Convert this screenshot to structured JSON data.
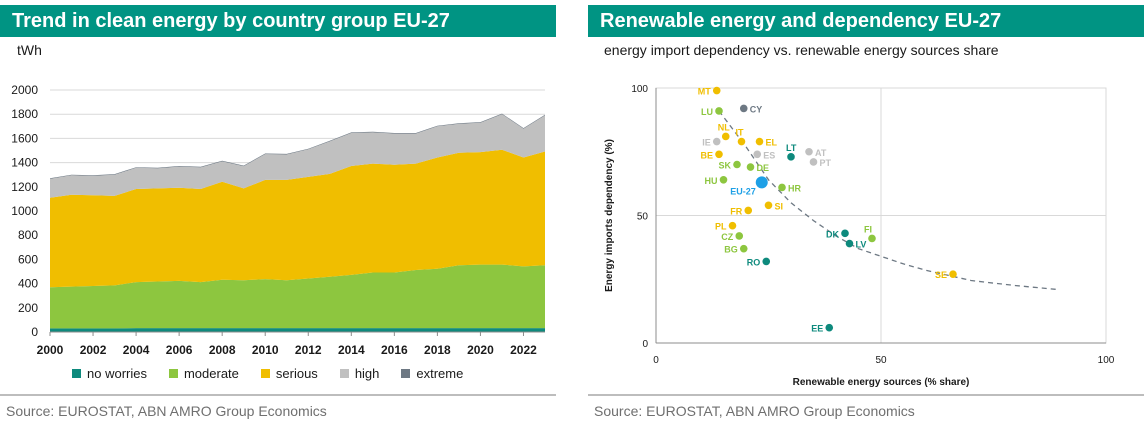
{
  "left_panel": {
    "title": "Trend in clean energy by country group EU-27",
    "unit": "tWh",
    "source": "Source: EUROSTAT, ABN AMRO Group Economics"
  },
  "right_panel": {
    "title": "Renewable energy and dependency EU-27",
    "subtitle": "energy import dependency vs. renewable energy sources share",
    "source": "Source: EUROSTAT, ABN AMRO Group Economics"
  },
  "chart_data": [
    {
      "type": "area",
      "stacked": true,
      "title": "Trend in clean energy by country group EU-27",
      "ylabel": "tWh",
      "xlabel": "",
      "ylim": [
        0,
        2000
      ],
      "yticks": [
        0,
        200,
        400,
        600,
        800,
        1000,
        1200,
        1400,
        1600,
        1800,
        2000
      ],
      "xticks": [
        2000,
        2002,
        2004,
        2006,
        2008,
        2010,
        2012,
        2014,
        2016,
        2018,
        2020,
        2022
      ],
      "grid": true,
      "legend_position": "bottom",
      "x": [
        2000,
        2001,
        2002,
        2003,
        2004,
        2005,
        2006,
        2007,
        2008,
        2009,
        2010,
        2011,
        2012,
        2013,
        2014,
        2015,
        2016,
        2017,
        2018,
        2019,
        2020,
        2021,
        2022,
        2023
      ],
      "series": [
        {
          "name": "no worries",
          "color": "#0e8a7d",
          "values": [
            30,
            30,
            30,
            30,
            32,
            32,
            32,
            32,
            32,
            32,
            32,
            32,
            32,
            32,
            32,
            32,
            32,
            32,
            32,
            32,
            32,
            32,
            32,
            32
          ]
        },
        {
          "name": "moderate",
          "color": "#8dc63f",
          "values": [
            340,
            345,
            350,
            355,
            380,
            385,
            390,
            380,
            400,
            395,
            405,
            395,
            410,
            425,
            440,
            460,
            460,
            480,
            490,
            520,
            525,
            525,
            510,
            520
          ]
        },
        {
          "name": "serious",
          "color": "#f0be00",
          "values": [
            740,
            760,
            750,
            740,
            770,
            770,
            770,
            770,
            810,
            760,
            820,
            830,
            840,
            850,
            900,
            900,
            890,
            880,
            920,
            930,
            930,
            950,
            900,
            940
          ]
        },
        {
          "name": "high",
          "color": "#c0c0c0",
          "values": [
            155,
            160,
            160,
            175,
            175,
            165,
            175,
            178,
            168,
            183,
            213,
            210,
            228,
            268,
            273,
            258,
            258,
            248,
            258,
            238,
            243,
            293,
            238,
            298
          ]
        },
        {
          "name": "extreme",
          "color": "#6d7883",
          "values": [
            5,
            5,
            5,
            5,
            5,
            5,
            5,
            5,
            5,
            5,
            5,
            5,
            5,
            5,
            5,
            5,
            5,
            5,
            5,
            5,
            5,
            5,
            5,
            5
          ]
        }
      ]
    },
    {
      "type": "scatter",
      "title": "Renewable energy and dependency EU-27",
      "subtitle": "energy import dependency vs. renewable energy sources share",
      "xlabel": "Renewable energy sources (% share)",
      "ylabel": "Energy imports dependency (%)",
      "xlim": [
        0,
        100
      ],
      "ylim": [
        0,
        100
      ],
      "xticks": [
        0,
        50,
        100
      ],
      "yticks": [
        0,
        50,
        100
      ],
      "grid": true,
      "color_groups": {
        "no worries": "#0e8a7d",
        "moderate": "#8dc63f",
        "serious": "#f0be00",
        "high": "#c0c0c0",
        "extreme": "#6d7883",
        "EU-27": "#1ea0e6"
      },
      "trendline": [
        [
          14,
          91
        ],
        [
          20,
          77
        ],
        [
          25,
          64
        ],
        [
          30,
          55
        ],
        [
          35,
          48
        ],
        [
          40,
          42
        ],
        [
          45,
          37
        ],
        [
          50,
          34
        ],
        [
          55,
          31
        ],
        [
          60,
          28.5
        ],
        [
          65,
          26.5
        ],
        [
          70,
          24.5
        ],
        [
          75,
          23.5
        ],
        [
          80,
          22.5
        ],
        [
          85,
          21.7
        ],
        [
          89,
          21
        ]
      ],
      "points": [
        {
          "label": "MT",
          "x": 13.5,
          "y": 99,
          "group": "serious"
        },
        {
          "label": "CY",
          "x": 19.5,
          "y": 92,
          "group": "extreme"
        },
        {
          "label": "LU",
          "x": 14,
          "y": 91,
          "group": "moderate"
        },
        {
          "label": "NL",
          "x": 15.5,
          "y": 81,
          "group": "serious"
        },
        {
          "label": "IT",
          "x": 19,
          "y": 79,
          "group": "serious"
        },
        {
          "label": "EL",
          "x": 23,
          "y": 79,
          "group": "serious"
        },
        {
          "label": "IE",
          "x": 13.5,
          "y": 79,
          "group": "high"
        },
        {
          "label": "BE",
          "x": 14,
          "y": 74,
          "group": "serious"
        },
        {
          "label": "ES",
          "x": 22.5,
          "y": 74,
          "group": "high"
        },
        {
          "label": "AT",
          "x": 34,
          "y": 75,
          "group": "high"
        },
        {
          "label": "PT",
          "x": 35,
          "y": 71,
          "group": "high"
        },
        {
          "label": "LT",
          "x": 30,
          "y": 73,
          "group": "no worries"
        },
        {
          "label": "SK",
          "x": 18,
          "y": 70,
          "group": "moderate"
        },
        {
          "label": "DE",
          "x": 21,
          "y": 69,
          "group": "moderate"
        },
        {
          "label": "HU",
          "x": 15,
          "y": 64,
          "group": "moderate"
        },
        {
          "label": "EU-27",
          "x": 23.5,
          "y": 63,
          "group": "EU-27"
        },
        {
          "label": "HR",
          "x": 28,
          "y": 61,
          "group": "moderate"
        },
        {
          "label": "SI",
          "x": 25,
          "y": 54,
          "group": "serious"
        },
        {
          "label": "FR",
          "x": 20.5,
          "y": 52,
          "group": "serious"
        },
        {
          "label": "PL",
          "x": 17,
          "y": 46,
          "group": "serious"
        },
        {
          "label": "DK",
          "x": 42,
          "y": 43,
          "group": "no worries"
        },
        {
          "label": "CZ",
          "x": 18.5,
          "y": 42,
          "group": "moderate"
        },
        {
          "label": "FI",
          "x": 48,
          "y": 41,
          "group": "moderate"
        },
        {
          "label": "LV",
          "x": 43,
          "y": 39,
          "group": "no worries"
        },
        {
          "label": "BG",
          "x": 19.5,
          "y": 37,
          "group": "moderate"
        },
        {
          "label": "RO",
          "x": 24.5,
          "y": 32,
          "group": "no worries"
        },
        {
          "label": "SE",
          "x": 66,
          "y": 27,
          "group": "serious"
        },
        {
          "label": "EE",
          "x": 38.5,
          "y": 6,
          "group": "no worries"
        }
      ]
    }
  ]
}
